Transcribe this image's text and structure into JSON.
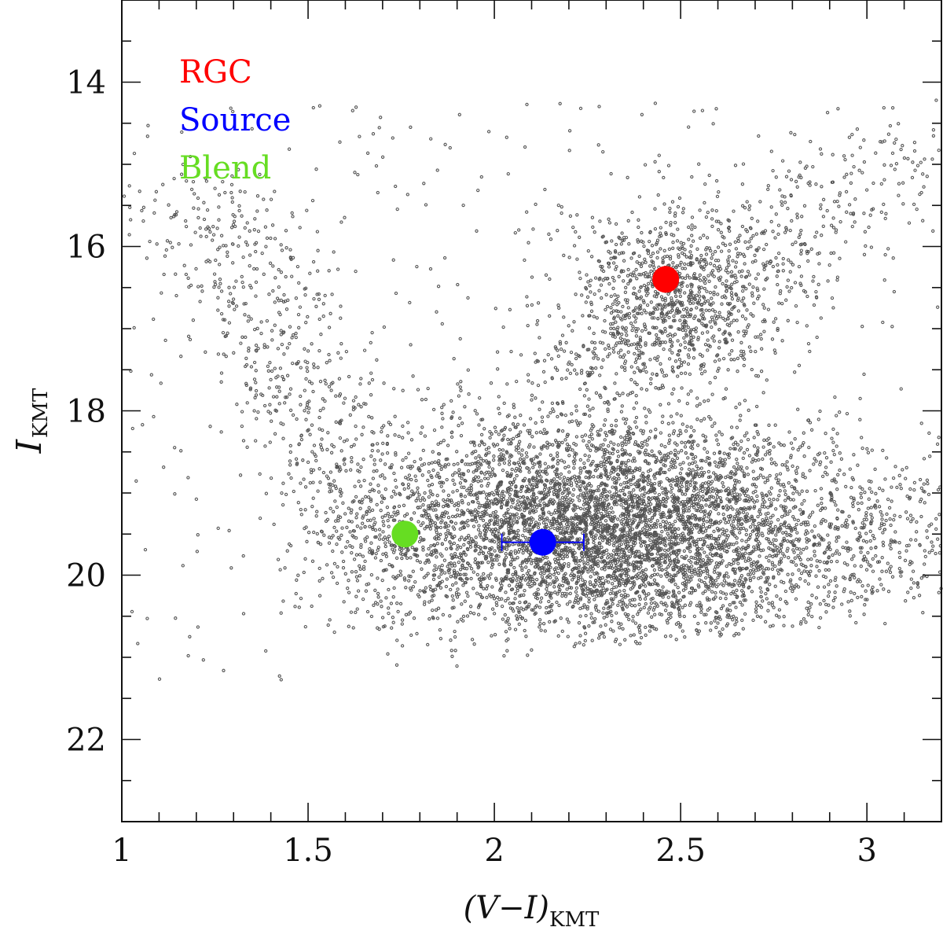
{
  "chart_data": {
    "type": "scatter",
    "title": "",
    "xlabel": {
      "main": "(V−I)",
      "sub": "KMT"
    },
    "ylabel": {
      "main": "I",
      "sub": "KMT"
    },
    "xlim": [
      1.0,
      3.2
    ],
    "ylim": [
      23.0,
      13.0
    ],
    "y_inverted": true,
    "x_ticks": [
      {
        "value": 1.0,
        "label": "1"
      },
      {
        "value": 1.5,
        "label": "1.5"
      },
      {
        "value": 2.0,
        "label": "2"
      },
      {
        "value": 2.5,
        "label": "2.5"
      },
      {
        "value": 3.0,
        "label": "3"
      }
    ],
    "x_minor_step": 0.1,
    "y_ticks": [
      {
        "value": 14,
        "label": "14"
      },
      {
        "value": 16,
        "label": "16"
      },
      {
        "value": 18,
        "label": "18"
      },
      {
        "value": 20,
        "label": "20"
      },
      {
        "value": 22,
        "label": "22"
      }
    ],
    "y_minor_step": 0.5,
    "grid": false,
    "legend_position": "top-left",
    "background_stars": {
      "description_count": 9000,
      "color": "#555555",
      "populations": [
        {
          "name": "main-clump",
          "center": [
            2.28,
            19.4
          ],
          "spread": [
            0.3,
            0.62
          ],
          "count": 5200
        },
        {
          "name": "red-giant-clump",
          "center": [
            2.48,
            16.6
          ],
          "spread": [
            0.15,
            0.55
          ],
          "count": 950
        },
        {
          "name": "red-giant-branch",
          "from": [
            2.1,
            18.1
          ],
          "to": [
            3.1,
            14.8
          ],
          "width": 0.13,
          "count": 520
        },
        {
          "name": "blue-disk-sequence",
          "from": [
            1.22,
            15.3
          ],
          "to": [
            1.78,
            20.4
          ],
          "width": 0.11,
          "count": 700
        },
        {
          "name": "faint-red-tail",
          "from": [
            2.4,
            20.1
          ],
          "to": [
            3.2,
            19.3
          ],
          "width": 0.25,
          "count": 900
        },
        {
          "name": "field",
          "xrange": [
            1.0,
            3.2
          ],
          "yrange": [
            14.2,
            21.3
          ],
          "count": 430
        }
      ]
    },
    "highlighted_points": [
      {
        "name": "RGC",
        "x": 2.46,
        "y": 16.4,
        "color": "#ff0000"
      },
      {
        "name": "Source",
        "x": 2.13,
        "y": 19.6,
        "color": "#0000ff",
        "xerr": [
          2.02,
          2.24
        ]
      },
      {
        "name": "Blend",
        "x": 1.76,
        "y": 19.5,
        "color": "#66dd22"
      }
    ],
    "legend": [
      {
        "label": "RGC",
        "color": "#ff0000"
      },
      {
        "label": "Source",
        "color": "#0000ff"
      },
      {
        "label": "Blend",
        "color": "#66dd22"
      }
    ]
  }
}
